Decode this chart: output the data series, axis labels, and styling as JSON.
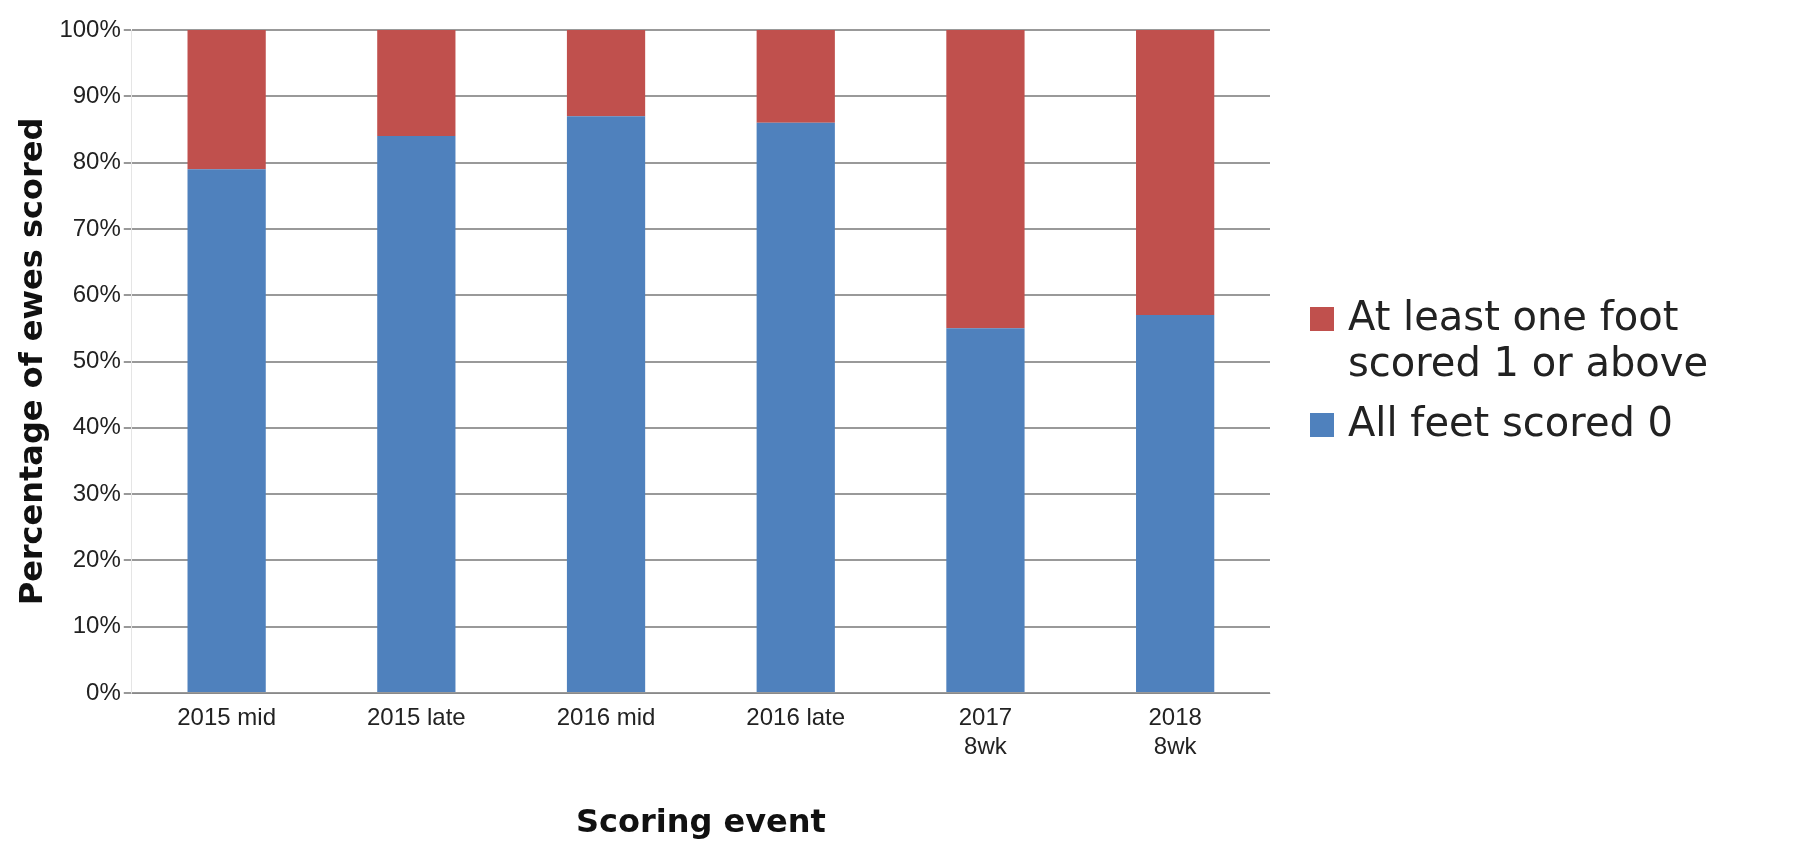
{
  "chart_data": {
    "type": "bar",
    "stacked": true,
    "xlabel": "Scoring event",
    "ylabel": "Percentage of ewes scored",
    "categories": [
      "2015 mid",
      "2015 late",
      "2016 mid",
      "2016 late",
      "2017\n8wk",
      "2018\n8wk"
    ],
    "series": [
      {
        "name": "All feet scored 0",
        "color": "#4f81bd",
        "values": [
          79,
          84,
          87,
          86,
          55,
          57
        ]
      },
      {
        "name": "At least one foot scored 1 or above",
        "color": "#c0504d",
        "values": [
          21,
          16,
          13,
          14,
          45,
          43
        ]
      }
    ],
    "ylim": [
      0,
      100
    ],
    "yticks": [
      {
        "value": 0,
        "label": "0%"
      },
      {
        "value": 10,
        "label": "10%"
      },
      {
        "value": 20,
        "label": "20%"
      },
      {
        "value": 30,
        "label": "30%"
      },
      {
        "value": 40,
        "label": "40%"
      },
      {
        "value": 50,
        "label": "50%"
      },
      {
        "value": 60,
        "label": "60%"
      },
      {
        "value": 70,
        "label": "70%"
      },
      {
        "value": 80,
        "label": "80%"
      },
      {
        "value": 90,
        "label": "90%"
      },
      {
        "value": 100,
        "label": "100%"
      }
    ],
    "grid": "y",
    "legend": "right"
  }
}
